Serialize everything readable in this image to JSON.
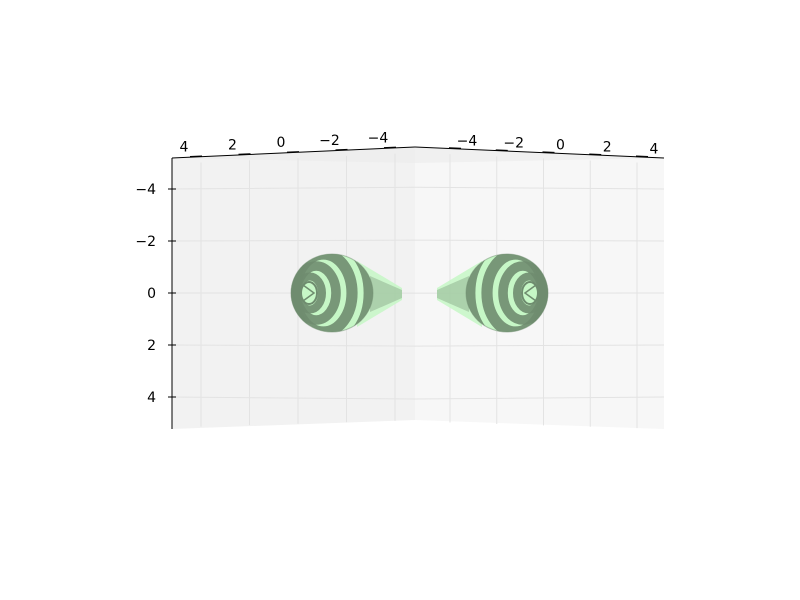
{
  "chart_data": {
    "type": "surface-3d",
    "title": "",
    "xlabel": "",
    "ylabel": "",
    "zlabel": "",
    "grid": true,
    "axes": {
      "left_top": {
        "ticks": [
          4,
          2,
          0,
          -2,
          -4
        ],
        "labels": [
          "4",
          "2",
          "0",
          "−2",
          "−4"
        ]
      },
      "right_top": {
        "ticks": [
          -4,
          -2,
          0,
          2,
          4
        ],
        "labels": [
          "−4",
          "−2",
          "0",
          "2",
          "4"
        ]
      },
      "vertical": {
        "ticks": [
          -4,
          -2,
          0,
          2,
          4
        ],
        "labels": [
          "−4",
          "−2",
          "0",
          "2",
          "4"
        ]
      }
    },
    "series": [
      {
        "lobe": "left",
        "center": [
          -3,
          0
        ],
        "color_light": "#c6f7c6",
        "color_dark": "#6f8c6f"
      },
      {
        "lobe": "right",
        "center": [
          3,
          0
        ],
        "color_light": "#c6f7c6",
        "color_dark": "#6f8c6f"
      }
    ],
    "colors": {
      "pane_left": "#f2f2f2",
      "pane_right": "#f7f7f7",
      "grid": "#e3e3e3",
      "axis": "#000000"
    }
  }
}
